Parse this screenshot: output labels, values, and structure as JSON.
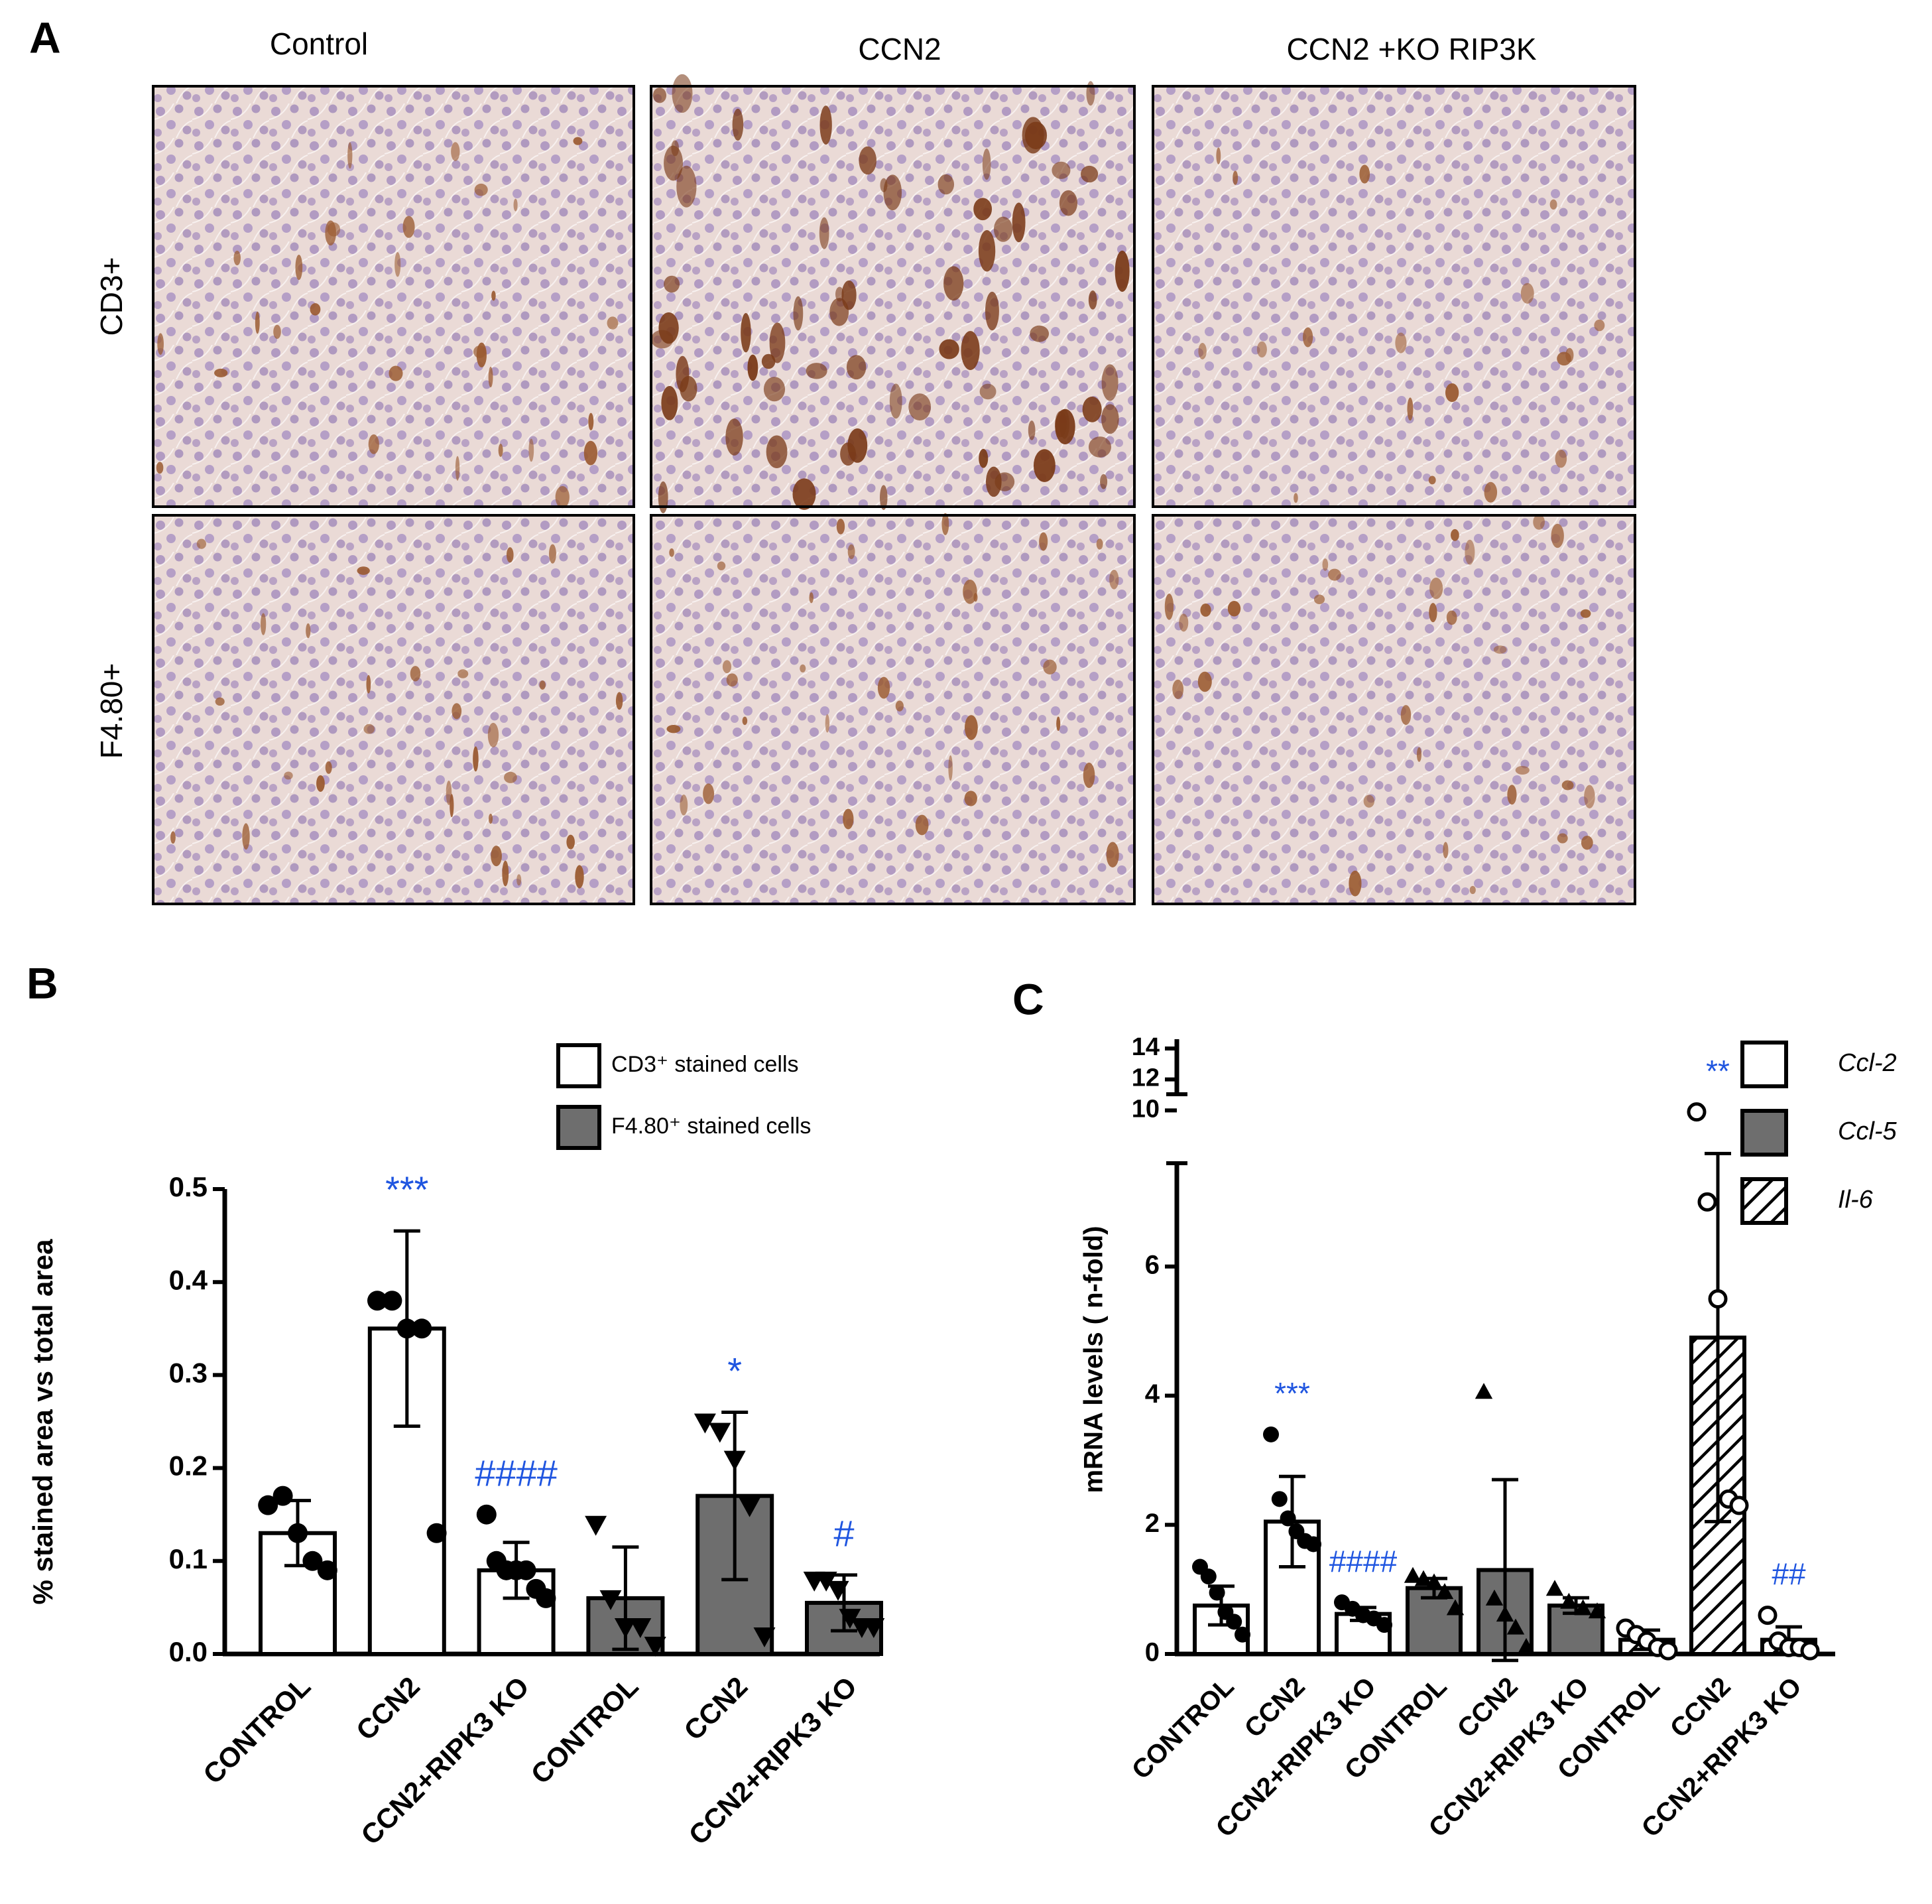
{
  "panel_labels": [
    "A",
    "B",
    "C"
  ],
  "micrographs": {
    "columns": [
      "Control",
      "CCN2",
      "CCN2 +KO RIP3K"
    ],
    "rows": [
      "CD3+",
      "F4.80+"
    ]
  },
  "chart_data": [
    {
      "type": "bar",
      "y_label": "% stained area vs total area",
      "categories": [
        "CONTROL",
        "CCN2",
        "CCN2+RIPK3 KO",
        "CONTROL",
        "CCN2",
        "CCN2+RIPK3 KO"
      ],
      "ylim": [
        0,
        0.5
      ],
      "yticks": [
        {
          "value": 0,
          "label": "0.0"
        },
        0.1,
        0.2,
        0.3,
        0.4,
        0.5
      ],
      "annotation_color": "#1f55e0",
      "series": [
        {
          "name": "CD3⁺ stained cells",
          "color": "#ffffff",
          "marker": "circle",
          "values": [
            0.13,
            0.35,
            0.09,
            null,
            null,
            null
          ],
          "errors": [
            0.035,
            0.105,
            0.03,
            null,
            null,
            null
          ],
          "significance": [
            null,
            "***",
            "####",
            null,
            null,
            null
          ],
          "points": [
            [
              0.16,
              0.17,
              0.13,
              0.1,
              0.09
            ],
            [
              0.38,
              0.38,
              0.35,
              0.35,
              0.13
            ],
            [
              0.15,
              0.1,
              0.09,
              0.09,
              0.09,
              0.07,
              0.06
            ],
            null,
            null,
            null
          ]
        },
        {
          "name": "F4.80⁺ stained cells",
          "color": "#6e6e6e",
          "marker": "triangle-down",
          "values": [
            null,
            null,
            null,
            0.06,
            0.17,
            0.055
          ],
          "errors": [
            null,
            null,
            null,
            0.055,
            0.09,
            0.03
          ],
          "significance": [
            null,
            null,
            null,
            null,
            "*",
            "#"
          ],
          "points": [
            null,
            null,
            null,
            [
              0.14,
              0.06,
              0.03,
              0.03,
              0.01
            ],
            [
              0.25,
              0.24,
              0.21,
              0.16,
              0.02
            ],
            [
              0.08,
              0.08,
              0.07,
              0.04,
              0.03,
              0.03
            ]
          ]
        }
      ]
    },
    {
      "type": "bar",
      "y_label": "mRNA levels ( n-fold)",
      "categories": [
        "CONTROL",
        "CCN2",
        "CCN2+RIPK3 KO",
        "CONTROL",
        "CCN2",
        "CCN2+RIPK3 KO",
        "CONTROL",
        "CCN2",
        "CCN2+RIPK3 KO"
      ],
      "ylim": [
        0,
        7.6
      ],
      "yticks": [
        0,
        2,
        4,
        6
      ],
      "ylim_upper": [
        9.5,
        14.6
      ],
      "yticks_upper": [
        10,
        12,
        14
      ],
      "annotation_color": "#1f55e0",
      "series": [
        {
          "name": "Ccl-2",
          "color": "#ffffff",
          "marker": "circle",
          "values": [
            0.75,
            2.05,
            0.62,
            null,
            null,
            null,
            null,
            null,
            null
          ],
          "errors": [
            0.3,
            0.7,
            0.1,
            null,
            null,
            null,
            null,
            null,
            null
          ],
          "significance": [
            null,
            "***",
            "####",
            null,
            null,
            null,
            null,
            null,
            null
          ],
          "points": [
            [
              1.35,
              1.2,
              0.95,
              0.65,
              0.5,
              0.3
            ],
            [
              3.4,
              2.4,
              2.1,
              1.9,
              1.75,
              1.7
            ],
            [
              0.8,
              0.7,
              0.6,
              0.55,
              0.45
            ],
            null,
            null,
            null,
            null,
            null,
            null
          ]
        },
        {
          "name": "Ccl-5",
          "color": "#6e6e6e",
          "marker": "triangle-up",
          "values": [
            null,
            null,
            null,
            1.02,
            1.3,
            0.75,
            null,
            null,
            null
          ],
          "errors": [
            null,
            null,
            null,
            0.15,
            1.4,
            0.12,
            null,
            null,
            null
          ],
          "significance": [
            null,
            null,
            null,
            null,
            null,
            null,
            null,
            null,
            null
          ],
          "points": [
            null,
            null,
            null,
            [
              1.2,
              1.15,
              1.1,
              0.95,
              0.7
            ],
            [
              4.05,
              0.85,
              0.6,
              0.4,
              0.1
            ],
            [
              1.0,
              0.8,
              0.7,
              0.65
            ],
            null,
            null,
            null
          ]
        },
        {
          "name": "Il-6",
          "color": "#ffffff",
          "hatch": true,
          "marker": "open-circle",
          "values": [
            null,
            null,
            null,
            null,
            null,
            null,
            0.22,
            4.9,
            0.22
          ],
          "errors": [
            null,
            null,
            null,
            null,
            null,
            null,
            0.15,
            2.85,
            0.2
          ],
          "significance": [
            null,
            null,
            null,
            null,
            null,
            null,
            null,
            "**",
            "##"
          ],
          "points": [
            null,
            null,
            null,
            null,
            null,
            null,
            [
              0.4,
              0.3,
              0.2,
              0.1,
              0.05
            ],
            [
              9.9,
              7,
              5.5,
              2.4,
              2.3
            ],
            [
              0.6,
              0.2,
              0.1,
              0.1,
              0.05
            ]
          ]
        }
      ]
    }
  ]
}
